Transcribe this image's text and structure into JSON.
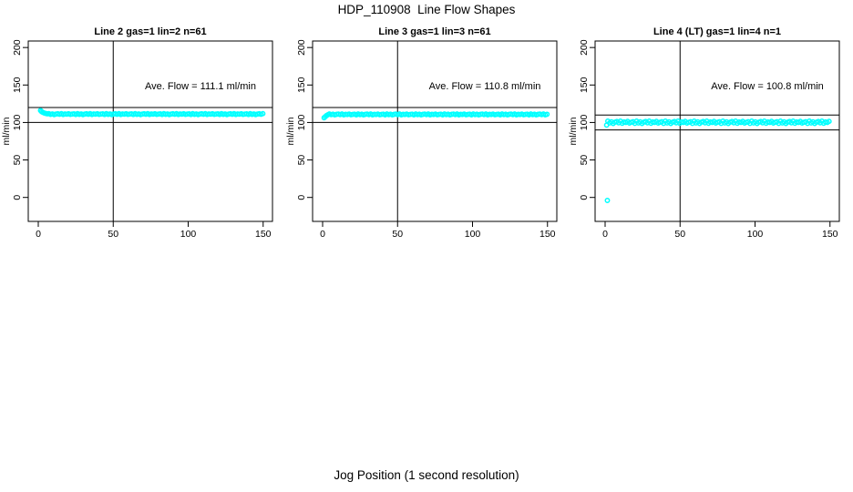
{
  "header": {
    "title": "HDP_110908  Line Flow Shapes"
  },
  "footer": {
    "xlabel": "Jog Position (1 second resolution)"
  },
  "style": {
    "point_color": "#00FFFF",
    "axis_color": "#000000",
    "background": "#FFFFFF",
    "noise_pattern": [
      0.5,
      -0.3,
      0.2,
      -0.55,
      0.05,
      0.35,
      -0.25,
      0.5,
      -0.45,
      0.15,
      -0.1,
      0.4,
      -0.35,
      0.0,
      0.25,
      -0.5
    ]
  },
  "chart_data": [
    {
      "type": "scatter",
      "title": "Line 2 gas=1 lin=2 n=61",
      "ylabel": "ml/min",
      "annotation": "Ave. Flow =  111.1  ml/min",
      "ave_flow_ml_min": 111.1,
      "xlim": [
        0,
        150
      ],
      "ylim": [
        -32,
        209
      ],
      "xticks": [
        0,
        50,
        100,
        150
      ],
      "yticks": [
        0,
        50,
        100,
        150,
        200
      ],
      "grid": false,
      "legend": null,
      "vline_x": 50,
      "hlines": [
        120,
        100
      ],
      "marker": "open-circle",
      "marker_color": "#00FFFF",
      "start_points": [
        [
          1.5,
          116.0
        ],
        [
          2.2,
          114.5
        ],
        [
          3.0,
          113.5
        ],
        [
          4.0,
          112.6
        ],
        [
          5.0,
          112.0
        ],
        [
          6.0,
          111.6
        ]
      ],
      "band": {
        "x_from": 7,
        "x_to": 150,
        "x_step": 1.2,
        "base": 111.2,
        "noise_amp": 1.2
      },
      "outliers": []
    },
    {
      "type": "scatter",
      "title": "Line 3 gas=1 lin=3 n=61",
      "ylabel": "ml/min",
      "annotation": "Ave. Flow =  110.8  ml/min",
      "ave_flow_ml_min": 110.8,
      "xlim": [
        0,
        150
      ],
      "ylim": [
        -32,
        209
      ],
      "xticks": [
        0,
        50,
        100,
        150
      ],
      "yticks": [
        0,
        50,
        100,
        150,
        200
      ],
      "grid": false,
      "legend": null,
      "vline_x": 50,
      "hlines": [
        120,
        100
      ],
      "marker": "open-circle",
      "marker_color": "#00FFFF",
      "start_points": [
        [
          1.0,
          106.3
        ],
        [
          1.8,
          107.8
        ],
        [
          2.6,
          109.2
        ],
        [
          3.5,
          110.3
        ]
      ],
      "band": {
        "x_from": 4.5,
        "x_to": 150,
        "x_step": 1.2,
        "base": 110.8,
        "noise_amp": 1.2
      },
      "outliers": []
    },
    {
      "type": "scatter",
      "title": "Line 4 (LT) gas=1 lin=4 n=1",
      "ylabel": "ml/min",
      "annotation": "Ave. Flow =  100.8  ml/min",
      "ave_flow_ml_min": 100.8,
      "xlim": [
        0,
        150
      ],
      "ylim": [
        -32,
        209
      ],
      "xticks": [
        0,
        50,
        100,
        150
      ],
      "yticks": [
        0,
        50,
        100,
        150,
        200
      ],
      "grid": false,
      "legend": null,
      "vline_x": 50,
      "hlines": [
        110,
        90
      ],
      "marker": "open-circle",
      "marker_color": "#00FFFF",
      "start_points": [
        [
          1.0,
          96.5
        ]
      ],
      "band": {
        "x_from": 1.8,
        "x_to": 150,
        "x_step": 1.2,
        "base": 100.3,
        "noise_amp": 3.0
      },
      "outliers": [
        [
          1.5,
          -4
        ]
      ]
    }
  ]
}
